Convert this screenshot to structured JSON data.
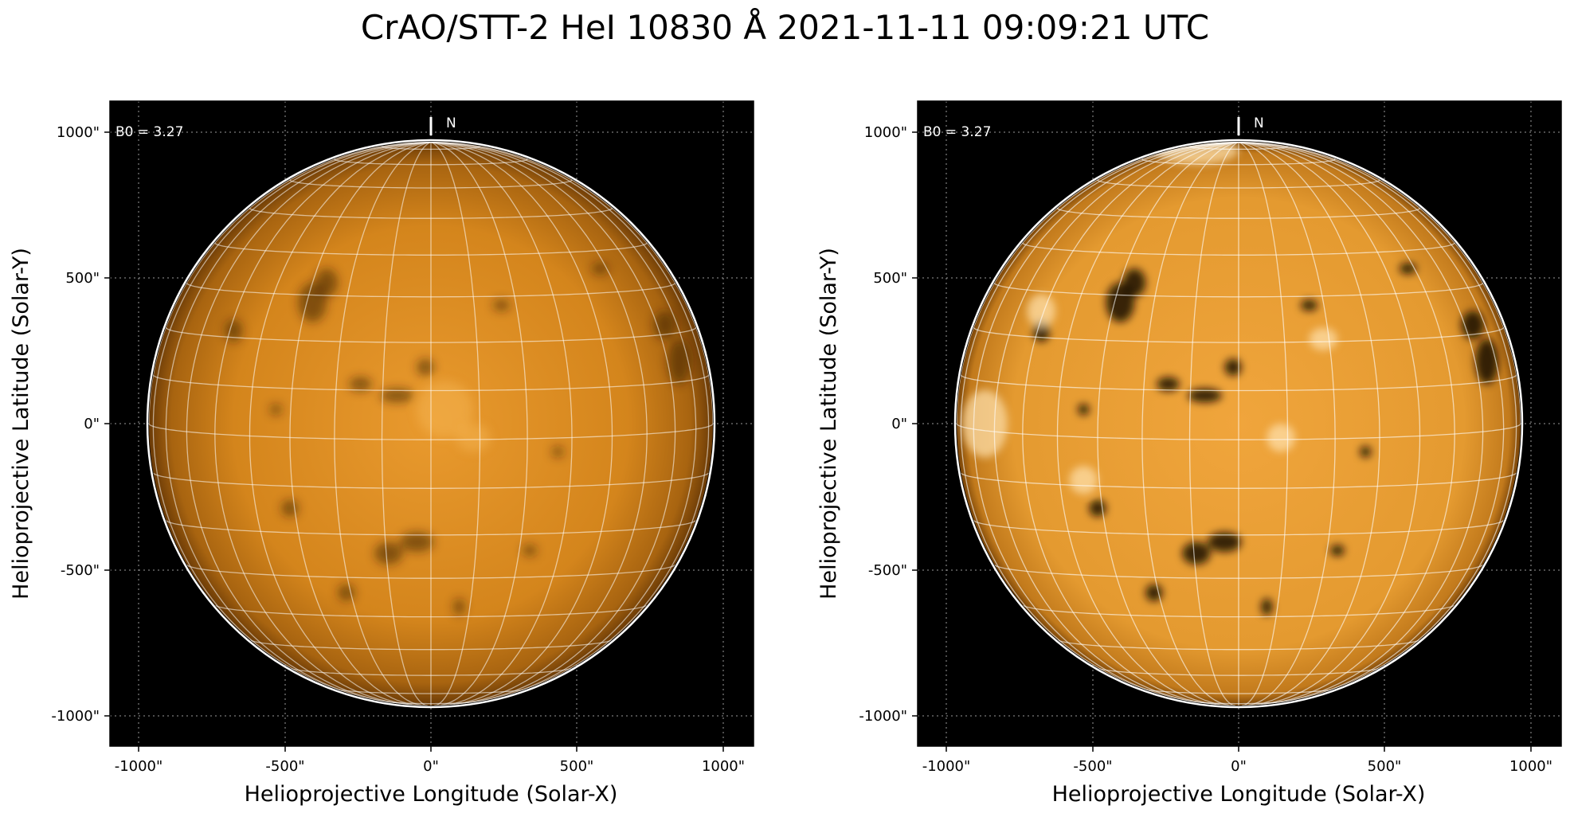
{
  "figure": {
    "title": "CrAO/STT-2 HeI 10830 Å 2021-11-11 09:09:21 UTC"
  },
  "panels": [
    {
      "b0_label": "B0 = 3.27",
      "north_label": "N",
      "xlabel": "Helioprojective Longitude (Solar-X)",
      "ylabel": "Helioprojective Latitude (Solar-Y)",
      "x_ticks": [
        "-1000\"",
        "-500\"",
        "0\"",
        "500\"",
        "1000\""
      ],
      "y_ticks": [
        "1000\"",
        "500\"",
        "0\"",
        "-500\"",
        "-1000\""
      ],
      "contrast": "normal"
    },
    {
      "b0_label": "B0 = 3.27",
      "north_label": "N",
      "xlabel": "Helioprojective Longitude (Solar-X)",
      "ylabel": "Helioprojective Latitude (Solar-Y)",
      "x_ticks": [
        "-1000\"",
        "-500\"",
        "0\"",
        "500\"",
        "1000\""
      ],
      "y_ticks": [
        "1000\"",
        "500\"",
        "0\"",
        "-500\"",
        "-1000\""
      ],
      "contrast": "enhanced"
    }
  ],
  "colors": {
    "background": "#000000",
    "sun_light": "#f2a63a",
    "sun_dark": "#8a4f0b",
    "grid": "#ffffff",
    "limb": "#ffffff"
  }
}
